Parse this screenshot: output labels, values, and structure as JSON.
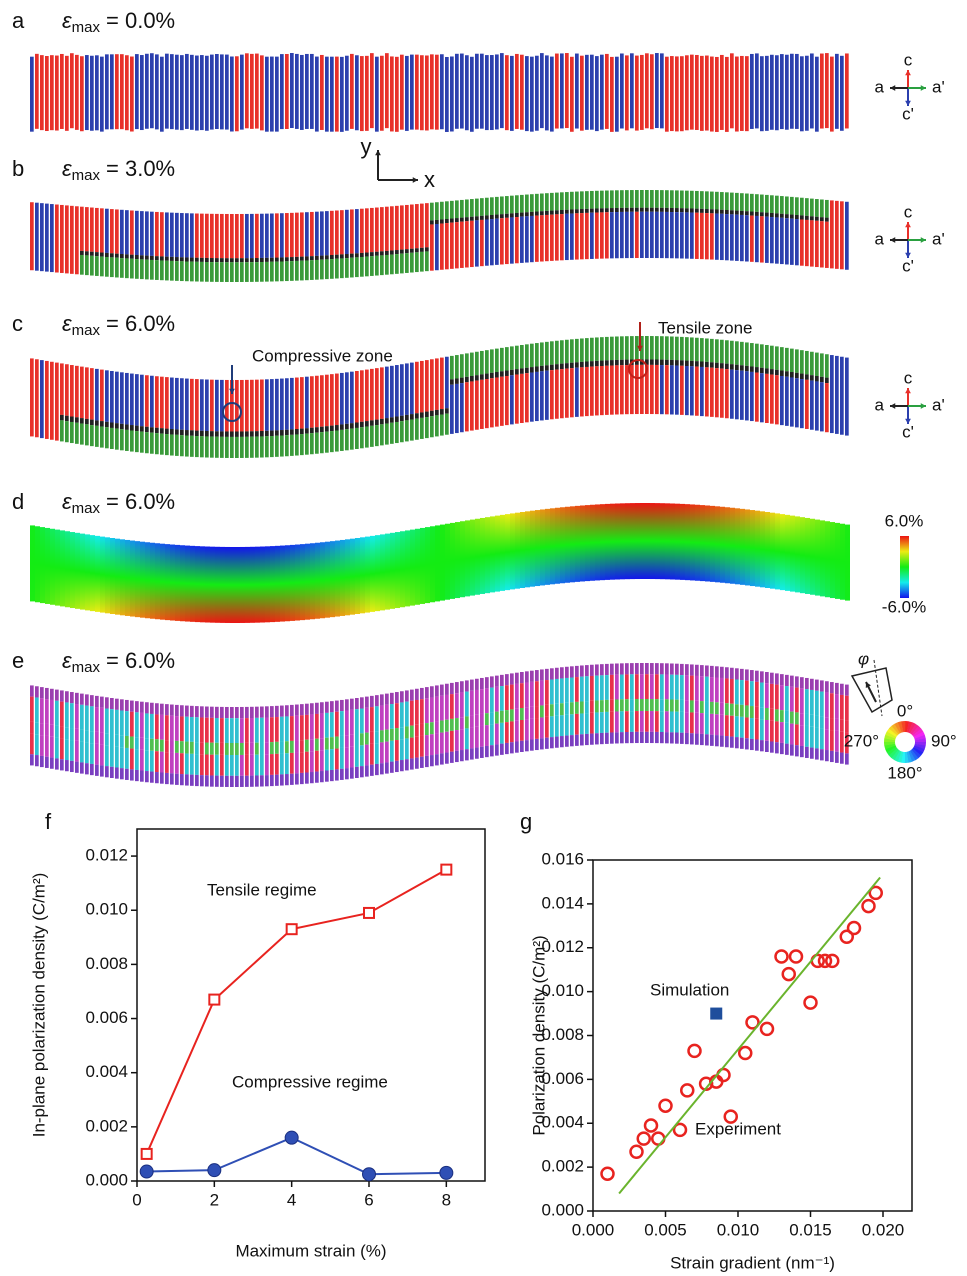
{
  "panels": [
    {
      "label": "a",
      "strain": {
        "symbol": "ε",
        "subscript": "max",
        "text": "= 0.0%"
      },
      "orientation": {
        "up": "c",
        "left": "a",
        "right": "a'",
        "down": "c'"
      }
    },
    {
      "label": "b",
      "strain": {
        "symbol": "ε",
        "subscript": "max",
        "text": "= 3.0%"
      },
      "orientation": {
        "up": "c",
        "left": "a",
        "right": "a'",
        "down": "c'"
      },
      "axes": {
        "y": "y",
        "x": "x"
      }
    },
    {
      "label": "c",
      "strain": {
        "symbol": "ε",
        "subscript": "max",
        "text": "= 6.0%"
      },
      "orientation": {
        "up": "c",
        "left": "a",
        "right": "a'",
        "down": "c'"
      },
      "annotations": [
        "Compressive zone",
        "Tensile zone"
      ]
    },
    {
      "label": "d",
      "strain": {
        "symbol": "ε",
        "subscript": "max",
        "text": "= 6.0%"
      },
      "colorbar": {
        "max": "6.0%",
        "min": "-6.0%"
      }
    },
    {
      "label": "e",
      "strain": {
        "symbol": "ε",
        "subscript": "max",
        "text": "= 6.0%"
      },
      "color_wheel": {
        "angle": "φ",
        "top": "0°",
        "right": "90°",
        "bottom": "180°",
        "left": "270°"
      }
    }
  ],
  "chart_data": [
    {
      "type": "line",
      "panel_label": "f",
      "x_label": "Maximum strain (%)",
      "y_label": "In-plane polarization density (C/m²)",
      "x": [
        0.25,
        2,
        4,
        6,
        8
      ],
      "series": [
        {
          "name": "Tensile regime",
          "color": "#e8231f",
          "marker": "square-open",
          "values": [
            0.001,
            0.0067,
            0.0093,
            0.0099,
            0.0115
          ]
        },
        {
          "name": "Compressive regime",
          "color": "#2f4fb5",
          "marker": "circle",
          "values": [
            0.00035,
            0.0004,
            0.0016,
            0.00025,
            0.0003
          ]
        }
      ],
      "xlim": [
        0,
        9
      ],
      "xticks": [
        0,
        2,
        4,
        6,
        8
      ],
      "ylim": [
        0,
        0.013
      ],
      "yticks": [
        {
          "value": 0,
          "label": "0.000"
        },
        0.002,
        0.004,
        0.006,
        0.008,
        {
          "value": 0.01,
          "label": "0.010"
        },
        0.012
      ]
    },
    {
      "type": "scatter",
      "panel_label": "g",
      "x_label": "Strain gradient (nm⁻¹)",
      "y_label": "Polarization density (C/m²)",
      "series": [
        {
          "name": "Simulation",
          "color": "#e8231f",
          "marker": "circle-open",
          "x": [
            0.001,
            0.003,
            0.0035,
            0.004,
            0.0045,
            0.005,
            0.006,
            0.0065,
            0.007,
            0.0078,
            0.0085,
            0.009,
            0.0095,
            0.0105,
            0.011,
            0.012,
            0.013,
            0.0135,
            0.014,
            0.015,
            0.0155,
            0.016,
            0.0165,
            0.0175,
            0.018,
            0.019,
            0.0195
          ],
          "values": [
            0.0017,
            0.0027,
            0.0033,
            0.0039,
            0.0033,
            0.0048,
            0.0037,
            0.0055,
            0.0073,
            0.0058,
            0.0059,
            0.0062,
            0.0043,
            0.0072,
            0.0086,
            0.0083,
            0.0116,
            0.0108,
            0.0116,
            0.0095,
            0.0114,
            0.0114,
            0.0114,
            0.0125,
            0.0129,
            0.0139,
            0.0145
          ]
        },
        {
          "name": "Experiment",
          "color": "#1f4e9c",
          "marker": "square",
          "x": [
            0.0085
          ],
          "values": [
            0.009
          ]
        },
        {
          "color": "#6ab42d",
          "marker": "none",
          "line": true,
          "x": [
            0.0018,
            0.0198
          ],
          "values": [
            0.0008,
            0.0152
          ]
        }
      ],
      "xlim": [
        0,
        0.022
      ],
      "xticks": [
        {
          "value": 0,
          "label": "0.000"
        },
        0.005,
        {
          "value": 0.01,
          "label": "0.010"
        },
        0.015,
        {
          "value": 0.02,
          "label": "0.020"
        }
      ],
      "ylim": [
        0,
        0.016
      ],
      "yticks": [
        {
          "value": 0,
          "label": "0.000"
        },
        0.002,
        0.004,
        0.006,
        0.008,
        {
          "value": 0.01,
          "label": "0.010"
        },
        0.012,
        0.014,
        0.016
      ]
    }
  ]
}
